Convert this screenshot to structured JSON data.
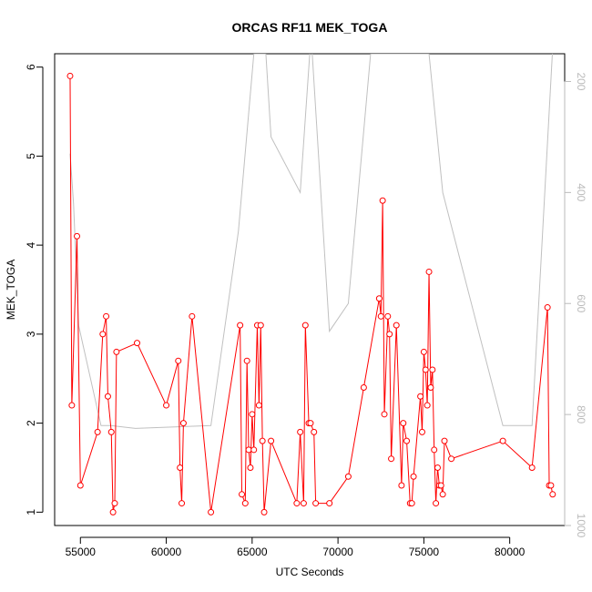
{
  "chart_data": {
    "type": "line",
    "title": "ORCAS RF11 MEK_TOGA",
    "xlabel": "UTC Seconds",
    "ylabel": "MEK_TOGA",
    "xlim": [
      53500,
      83200
    ],
    "ylim": [
      0.85,
      6.15
    ],
    "x_ticks": [
      55000,
      60000,
      65000,
      70000,
      75000,
      80000
    ],
    "x_tick_labels": [
      "55000",
      "60000",
      "65000",
      "70000",
      "75000",
      "80000"
    ],
    "y_ticks": [
      1,
      2,
      3,
      4,
      5,
      6
    ],
    "y_tick_labels": [
      "1",
      "2",
      "3",
      "4",
      "5",
      "6"
    ],
    "right_axis": {
      "reversed": true,
      "lim": [
        1000,
        150
      ],
      "ticks": [
        200,
        400,
        600,
        800,
        1000
      ],
      "tick_labels": [
        "200",
        "400",
        "600",
        "800",
        "1000"
      ],
      "color": "#bbbbbb"
    },
    "colors": {
      "series": "#ff0000",
      "background_series": "#c0c0c0"
    },
    "series": [
      {
        "style": "points-and-line",
        "x": [
          54400,
          54500,
          54800,
          55000,
          56000,
          56300,
          56500,
          56600,
          56800,
          56900,
          57000,
          57100,
          58300,
          60000,
          60700,
          60800,
          60900,
          61000,
          61500,
          62600,
          64300,
          64400,
          64600,
          64700,
          64800,
          64900,
          65000,
          65100,
          65300,
          65400,
          65500,
          65600,
          65700,
          66100,
          67600,
          67800,
          68000,
          68100,
          68300,
          68400,
          68600,
          68700,
          69500,
          70600,
          71500,
          72400,
          72500,
          72600,
          72700,
          72900,
          73000,
          73100,
          73400,
          73700,
          73800,
          74000,
          74200,
          74300,
          74400,
          74800,
          74900,
          75000,
          75100,
          75200,
          75300,
          75400,
          75500,
          75600,
          75700,
          75800,
          75900,
          76000,
          76100,
          76200,
          76600,
          79600,
          81300,
          82200,
          82300,
          82400,
          82500
        ],
        "y": [
          5.9,
          2.2,
          4.1,
          1.3,
          1.9,
          3.0,
          3.2,
          2.3,
          1.9,
          1.0,
          1.1,
          2.8,
          2.9,
          2.2,
          2.7,
          1.5,
          1.1,
          2.0,
          3.2,
          1.0,
          3.1,
          1.2,
          1.1,
          2.7,
          1.7,
          1.5,
          2.1,
          1.7,
          3.1,
          2.2,
          3.1,
          1.8,
          1.0,
          1.8,
          1.1,
          1.9,
          1.1,
          3.1,
          2.0,
          2.0,
          1.9,
          1.1,
          1.1,
          1.4,
          2.4,
          3.4,
          3.2,
          4.5,
          2.1,
          3.2,
          3.0,
          1.6,
          3.1,
          1.3,
          2.0,
          1.8,
          1.1,
          1.1,
          1.4,
          2.3,
          1.9,
          2.8,
          2.6,
          2.2,
          3.7,
          2.4,
          2.6,
          1.7,
          1.1,
          1.5,
          1.3,
          1.3,
          1.2,
          1.8,
          1.6,
          1.8,
          1.5,
          3.3,
          1.3,
          1.3,
          1.2
        ]
      },
      {
        "style": "line",
        "axis": "right",
        "x": [
          54400,
          54600,
          54900,
          56200,
          56800,
          58200,
          62600,
          64200,
          65100,
          65800,
          66100,
          67800,
          68400,
          68500,
          69500,
          70600,
          71900,
          73400,
          73600,
          74200,
          74300,
          74400,
          75100,
          75300,
          76100,
          79600,
          81300,
          82500
        ],
        "y": [
          330,
          420,
          640,
          820,
          820,
          825,
          820,
          470,
          150,
          150,
          300,
          400,
          130,
          150,
          650,
          600,
          150,
          150,
          150,
          150,
          150,
          150,
          150,
          150,
          400,
          820,
          820,
          140
        ]
      }
    ]
  }
}
